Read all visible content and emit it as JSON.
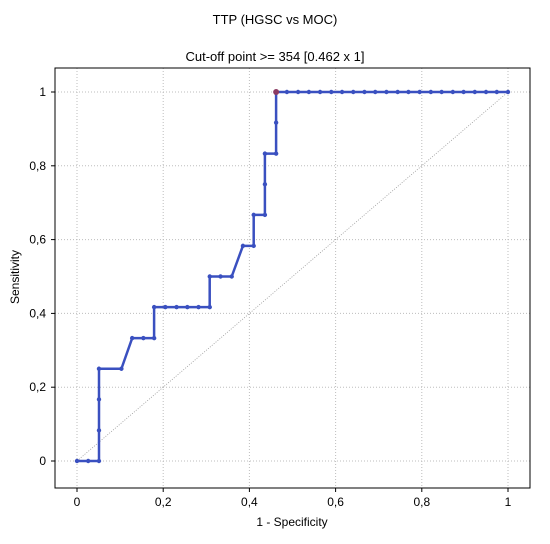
{
  "chart_data": {
    "type": "line",
    "title": "TTP (HGSC vs MOC)",
    "subtitle": "Cut-off point >= 354 [0.462 x 1]",
    "xlabel": "1 - Specificity",
    "ylabel": "Sensitivity",
    "xlim": [
      0,
      1
    ],
    "ylim": [
      0,
      1
    ],
    "xticks": [
      0,
      0.2,
      0.4,
      0.6,
      0.8,
      1
    ],
    "yticks": [
      0,
      0.2,
      0.4,
      0.6,
      0.8,
      1
    ],
    "xtick_labels": [
      "0",
      "0,2",
      "0,4",
      "0,6",
      "0,8",
      "1"
    ],
    "ytick_labels": [
      "0",
      "0,2",
      "0,4",
      "0,6",
      "0,8",
      "1"
    ],
    "grid": true,
    "legend": "none",
    "series": [
      {
        "color": "#3a50c0",
        "x": [
          0,
          0.026,
          0.051,
          0.051,
          0.051,
          0.051,
          0.103,
          0.128,
          0.154,
          0.179,
          0.179,
          0.205,
          0.231,
          0.256,
          0.282,
          0.308,
          0.308,
          0.333,
          0.359,
          0.385,
          0.41,
          0.41,
          0.436,
          0.436,
          0.436,
          0.462,
          0.462,
          0.462,
          0.487,
          0.513,
          0.538,
          0.564,
          0.59,
          0.615,
          0.641,
          0.667,
          0.692,
          0.718,
          0.744,
          0.769,
          0.795,
          0.821,
          0.846,
          0.872,
          0.897,
          0.923,
          0.949,
          0.974,
          1
        ],
        "y": [
          0,
          0,
          0,
          0.083,
          0.167,
          0.25,
          0.25,
          0.333,
          0.333,
          0.333,
          0.417,
          0.417,
          0.417,
          0.417,
          0.417,
          0.417,
          0.5,
          0.5,
          0.5,
          0.583,
          0.583,
          0.667,
          0.667,
          0.75,
          0.833,
          0.833,
          0.917,
          1,
          1,
          1,
          1,
          1,
          1,
          1,
          1,
          1,
          1,
          1,
          1,
          1,
          1,
          1,
          1,
          1,
          1,
          1,
          1,
          1,
          1
        ]
      }
    ],
    "reference_line": {
      "x": [
        0,
        1
      ],
      "y": [
        0,
        1
      ],
      "color": "#9a9a9a"
    },
    "cutoff_point": {
      "x": 0.462,
      "y": 1,
      "color": "#8b3a62"
    }
  }
}
